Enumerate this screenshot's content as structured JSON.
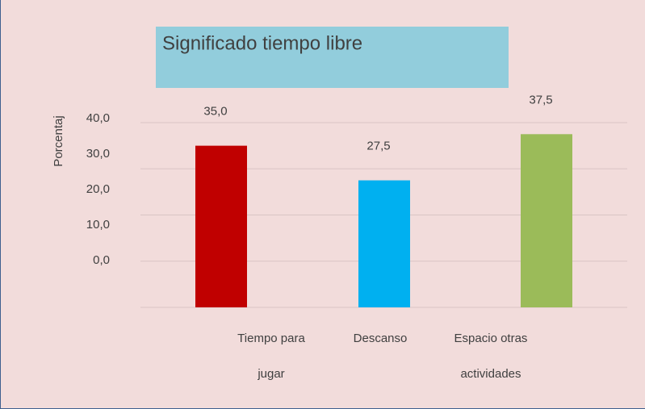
{
  "chart_data": {
    "type": "bar",
    "title": "Significado tiempo libre",
    "y_label": "Porcentaj",
    "categories": [
      "Tiempo para jugar",
      "Descanso",
      "Espacio otras actividades"
    ],
    "values": [
      35,
      27.5,
      37.5
    ],
    "value_labels": [
      "35,0",
      "27,5",
      "37,5"
    ],
    "colors": [
      "#c00000",
      "#00b0f0",
      "#9bbb59"
    ],
    "ylim": [
      0,
      40
    ],
    "yticks": [
      {
        "value": 0,
        "label": "0,0"
      },
      {
        "value": 10,
        "label": "10,0"
      },
      {
        "value": 20,
        "label": "20,0"
      },
      {
        "value": 30,
        "label": "30,0"
      },
      {
        "value": 40,
        "label": "40,0"
      }
    ],
    "grid": true
  }
}
